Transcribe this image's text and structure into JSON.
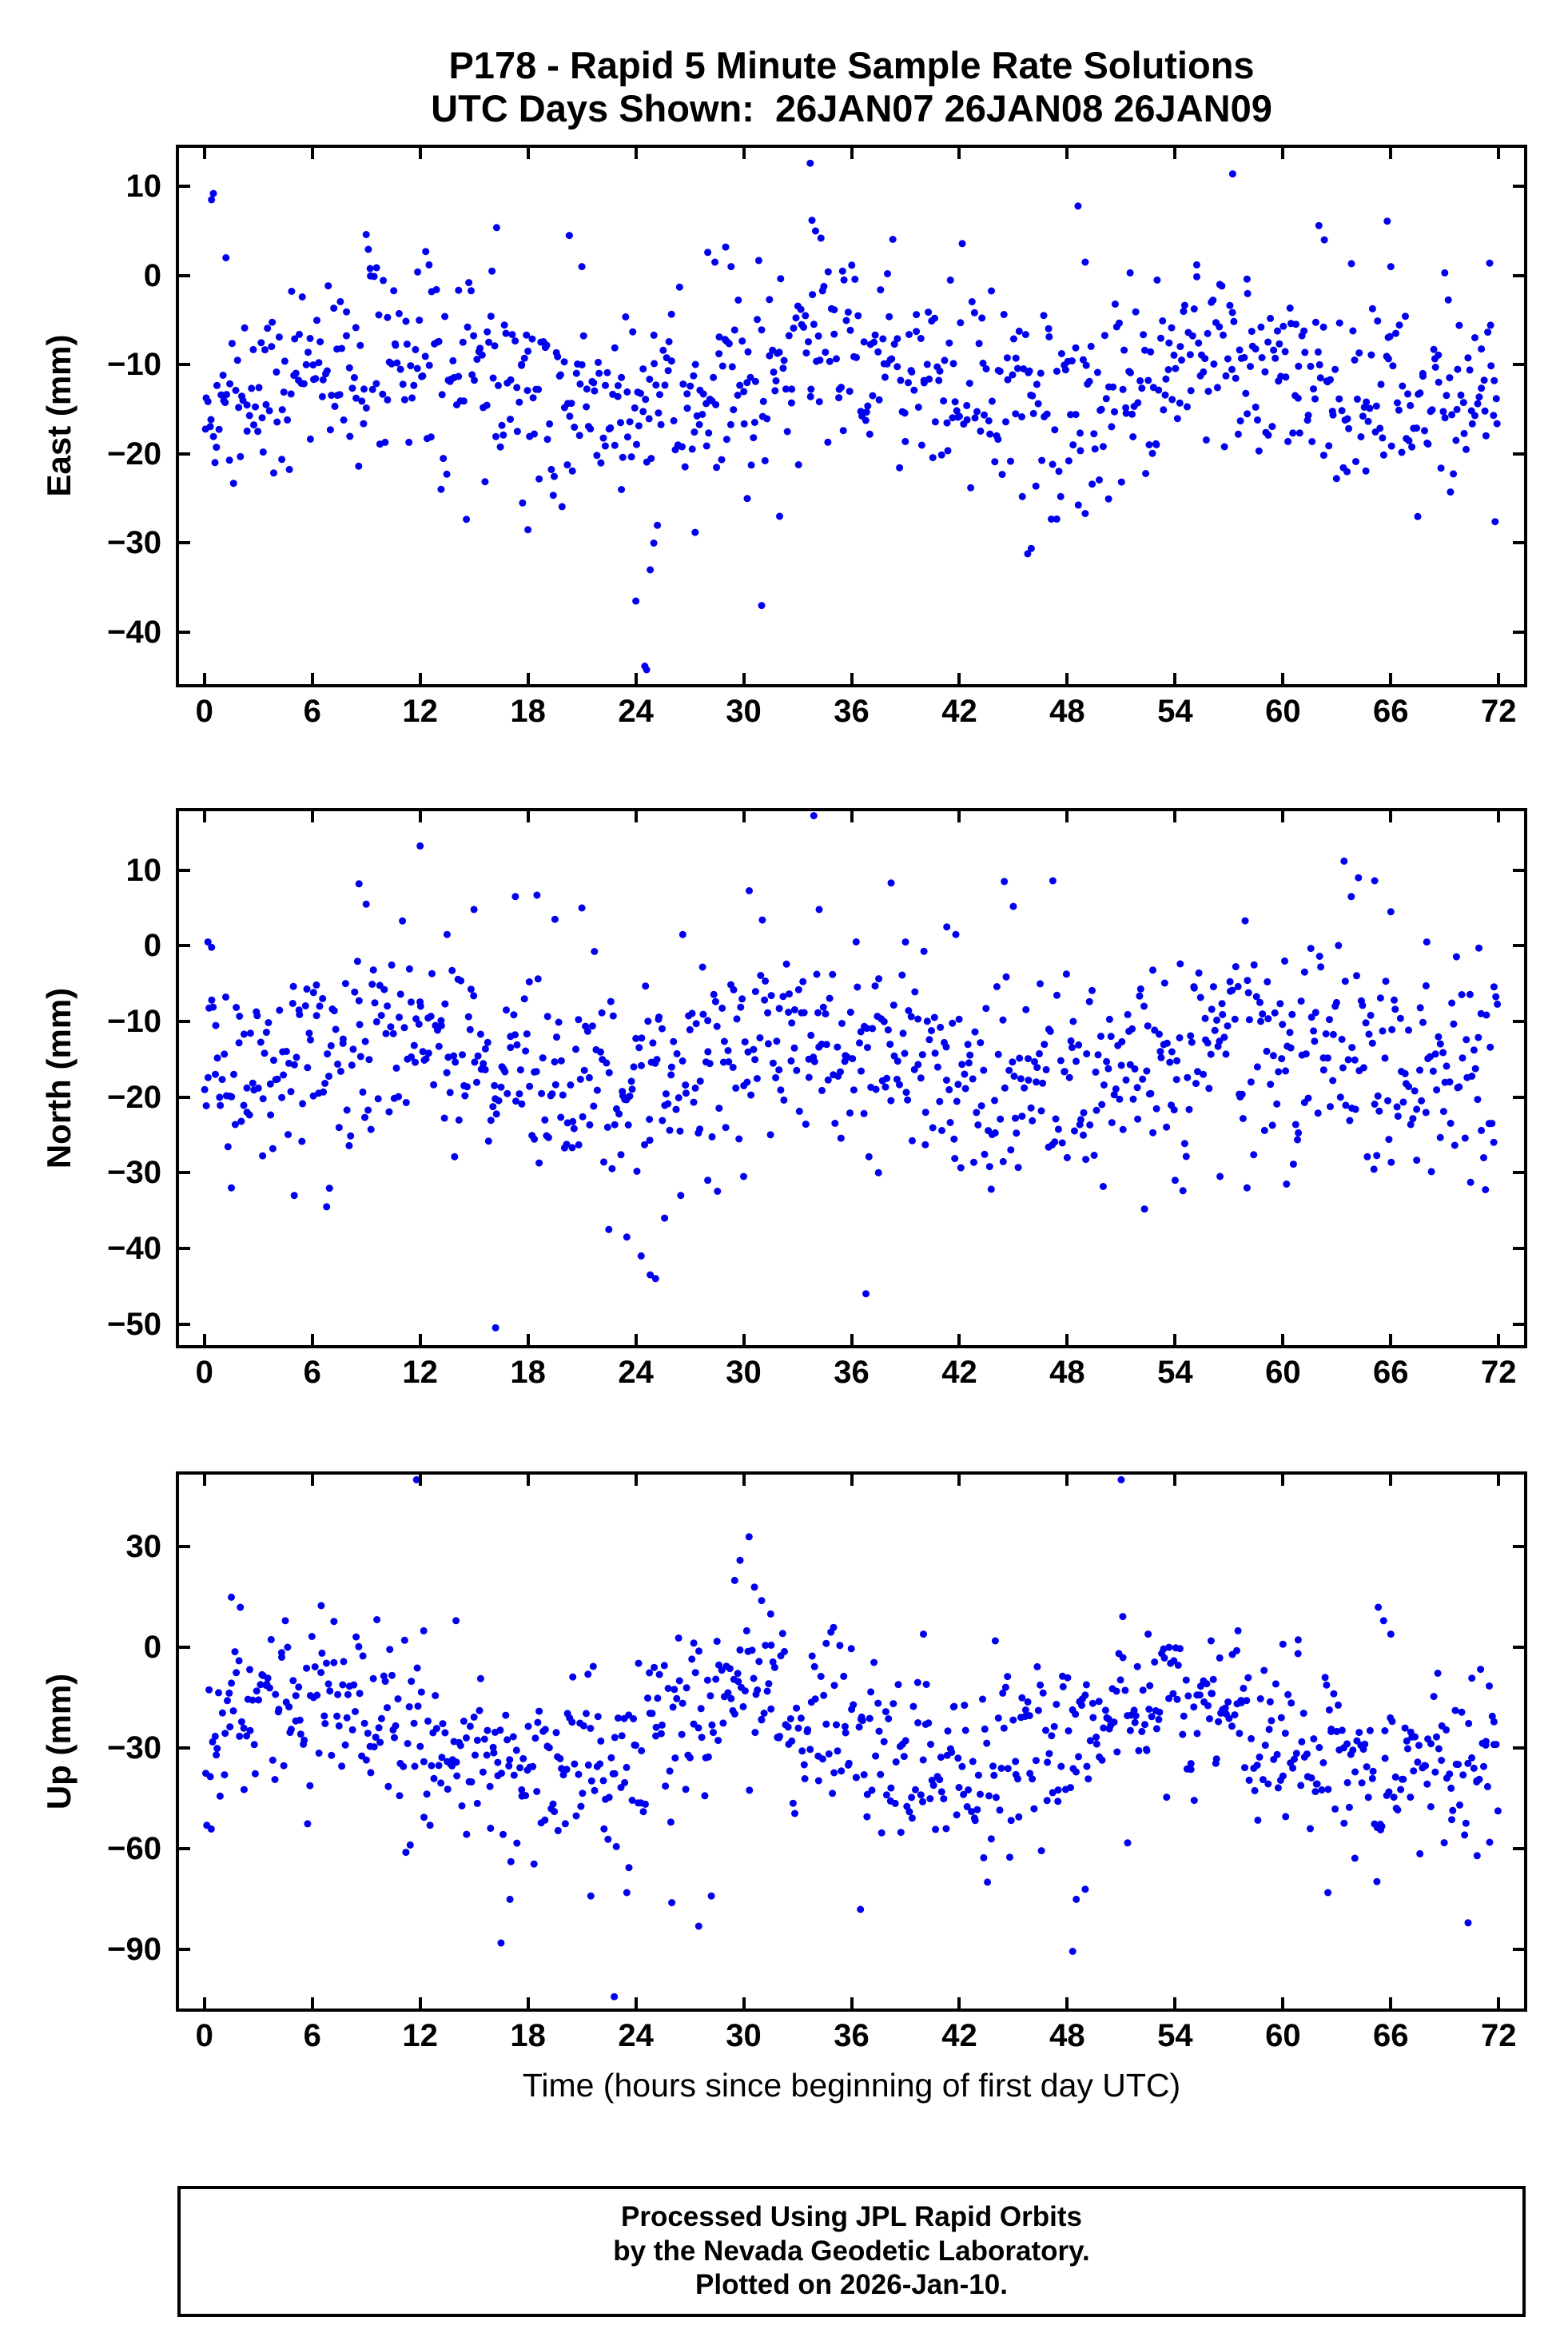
{
  "title": {
    "line1": "P178 - Rapid 5 Minute Sample Rate Solutions",
    "line2": "UTC Days Shown:  26JAN07 26JAN08 26JAN09"
  },
  "x_axis": {
    "label": "Time (hours since beginning of first day UTC)",
    "ticks": [
      0,
      6,
      12,
      18,
      24,
      30,
      36,
      42,
      48,
      54,
      60,
      66,
      72
    ],
    "lim": [
      -1.5,
      73.5
    ]
  },
  "point_color": "#0000ee",
  "footer": {
    "line1": "Processed Using JPL Rapid Orbits",
    "line2": "by the Nevada Geodetic Laboratory.",
    "line3": "Plotted on 2026-Jan-10."
  },
  "chart_data": [
    {
      "type": "scatter",
      "name": "east",
      "ylabel": "East (mm)",
      "ylim": [
        -46,
        14.5
      ],
      "yticks": [
        10,
        0,
        -10,
        -20,
        -30,
        -40
      ],
      "model": {
        "n": 820,
        "seed": 17,
        "mean": -12,
        "std": 5.2,
        "daily_amplitude": 2.2,
        "daily_phase_hours": 10,
        "clamp": [
          -28.5,
          5.5
        ]
      },
      "outliers": [
        [
          0.4,
          8.5
        ],
        [
          0.5,
          9.2
        ],
        [
          1.2,
          2.0
        ],
        [
          9.0,
          4.6
        ],
        [
          12.5,
          1.2
        ],
        [
          16.0,
          0.5
        ],
        [
          17.7,
          -25.5
        ],
        [
          18.0,
          -28.5
        ],
        [
          20.3,
          4.5
        ],
        [
          21.0,
          1.0
        ],
        [
          23.2,
          -24.0
        ],
        [
          24.0,
          -36.5
        ],
        [
          24.5,
          -43.8
        ],
        [
          24.6,
          -44.2
        ],
        [
          24.8,
          -33.0
        ],
        [
          25.0,
          -30.0
        ],
        [
          25.2,
          -28.0
        ],
        [
          27.3,
          -28.8
        ],
        [
          28.0,
          2.6
        ],
        [
          28.4,
          1.5
        ],
        [
          29.0,
          3.2
        ],
        [
          29.3,
          1.0
        ],
        [
          30.2,
          -25.0
        ],
        [
          31.0,
          -37.0
        ],
        [
          32.0,
          -27.0
        ],
        [
          33.7,
          12.6
        ],
        [
          33.8,
          6.2
        ],
        [
          34.0,
          5.0
        ],
        [
          34.3,
          4.2
        ],
        [
          35.5,
          0.5
        ],
        [
          38.0,
          0.2
        ],
        [
          41.5,
          -0.5
        ],
        [
          45.8,
          -31.2
        ],
        [
          46.0,
          -30.6
        ],
        [
          48.6,
          7.8
        ],
        [
          49.0,
          1.5
        ],
        [
          51.5,
          0.3
        ],
        [
          53.0,
          -0.5
        ],
        [
          55.2,
          1.2
        ],
        [
          57.2,
          11.4
        ],
        [
          58.0,
          -0.4
        ],
        [
          62.0,
          5.6
        ],
        [
          62.3,
          4.0
        ],
        [
          65.8,
          6.1
        ],
        [
          66.0,
          1.0
        ],
        [
          69.0,
          0.3
        ],
        [
          71.5,
          1.4
        ],
        [
          71.8,
          -27.6
        ]
      ]
    },
    {
      "type": "scatter",
      "name": "north",
      "ylabel": "North (mm)",
      "ylim": [
        -53,
        18
      ],
      "yticks": [
        10,
        0,
        -10,
        -20,
        -30,
        -40,
        -50
      ],
      "model": {
        "n": 820,
        "seed": 29,
        "mean": -15,
        "std": 6.4,
        "daily_amplitude": 3,
        "daily_phase_hours": 10,
        "clamp": [
          -32.5,
          8.5
        ]
      },
      "outliers": [
        [
          0.2,
          0.5
        ],
        [
          0.4,
          -0.2
        ],
        [
          1.5,
          -32.0
        ],
        [
          5.0,
          -33.0
        ],
        [
          6.8,
          -34.5
        ],
        [
          8.6,
          8.2
        ],
        [
          9.0,
          5.5
        ],
        [
          12.0,
          13.2
        ],
        [
          13.5,
          1.5
        ],
        [
          15.0,
          4.8
        ],
        [
          16.2,
          -50.5
        ],
        [
          17.3,
          6.5
        ],
        [
          18.5,
          6.7
        ],
        [
          19.5,
          3.5
        ],
        [
          21.0,
          5.0
        ],
        [
          22.5,
          -37.5
        ],
        [
          23.5,
          -38.5
        ],
        [
          24.3,
          -41.0
        ],
        [
          24.8,
          -43.5
        ],
        [
          25.1,
          -44.0
        ],
        [
          25.6,
          -36.0
        ],
        [
          26.5,
          -33.0
        ],
        [
          28.0,
          -31.0
        ],
        [
          30.0,
          -30.5
        ],
        [
          33.9,
          17.2
        ],
        [
          34.2,
          4.8
        ],
        [
          36.8,
          -46.0
        ],
        [
          37.5,
          -30.0
        ],
        [
          38.2,
          8.3
        ],
        [
          39.0,
          0.5
        ],
        [
          41.3,
          2.5
        ],
        [
          41.8,
          1.5
        ],
        [
          44.5,
          8.5
        ],
        [
          45.0,
          5.2
        ],
        [
          47.2,
          8.6
        ],
        [
          48.0,
          -28.0
        ],
        [
          52.3,
          -34.8
        ],
        [
          54.0,
          -31.0
        ],
        [
          56.5,
          -30.5
        ],
        [
          58.0,
          -32.0
        ],
        [
          60.2,
          -31.5
        ],
        [
          63.4,
          11.2
        ],
        [
          63.8,
          6.5
        ],
        [
          64.2,
          9.0
        ],
        [
          65.1,
          8.6
        ],
        [
          66.0,
          4.5
        ],
        [
          68.0,
          0.5
        ],
        [
          70.9,
          -0.3
        ],
        [
          71.5,
          -23.5
        ]
      ]
    },
    {
      "type": "scatter",
      "name": "up",
      "ylabel": "Up (mm)",
      "ylim": [
        -108,
        52
      ],
      "yticks": [
        30,
        0,
        -30,
        -60,
        -90
      ],
      "model": {
        "n": 820,
        "seed": 41,
        "mean": -27,
        "std": 13.5,
        "daily_amplitude": 11,
        "daily_phase_hours": 6,
        "clamp": [
          -71,
          11
        ]
      },
      "outliers": [
        [
          1.5,
          15.0
        ],
        [
          2.0,
          12.0
        ],
        [
          4.5,
          8.0
        ],
        [
          6.5,
          12.5
        ],
        [
          11.8,
          50.0
        ],
        [
          12.2,
          5.0
        ],
        [
          14.0,
          8.0
        ],
        [
          16.5,
          -88.0
        ],
        [
          17.0,
          -75.0
        ],
        [
          21.5,
          -74.0
        ],
        [
          22.8,
          -104.0
        ],
        [
          23.5,
          -73.0
        ],
        [
          26.0,
          -76.0
        ],
        [
          27.5,
          -83.0
        ],
        [
          28.2,
          -74.0
        ],
        [
          29.5,
          20.0
        ],
        [
          29.8,
          26.0
        ],
        [
          30.3,
          33.0
        ],
        [
          30.6,
          18.0
        ],
        [
          31.0,
          14.0
        ],
        [
          31.5,
          10.0
        ],
        [
          35.0,
          6.0
        ],
        [
          36.5,
          -78.0
        ],
        [
          40.0,
          4.0
        ],
        [
          44.0,
          2.0
        ],
        [
          48.3,
          -90.5
        ],
        [
          48.5,
          -75.0
        ],
        [
          49.0,
          -72.0
        ],
        [
          51.0,
          50.0
        ],
        [
          52.5,
          4.0
        ],
        [
          56.0,
          2.0
        ],
        [
          57.5,
          5.0
        ],
        [
          60.0,
          1.0
        ],
        [
          62.5,
          -73.0
        ],
        [
          65.3,
          12.0
        ],
        [
          65.6,
          8.0
        ],
        [
          66.0,
          4.0
        ],
        [
          70.3,
          -82.0
        ],
        [
          70.8,
          -62.0
        ],
        [
          71.5,
          -58.0
        ]
      ]
    }
  ]
}
